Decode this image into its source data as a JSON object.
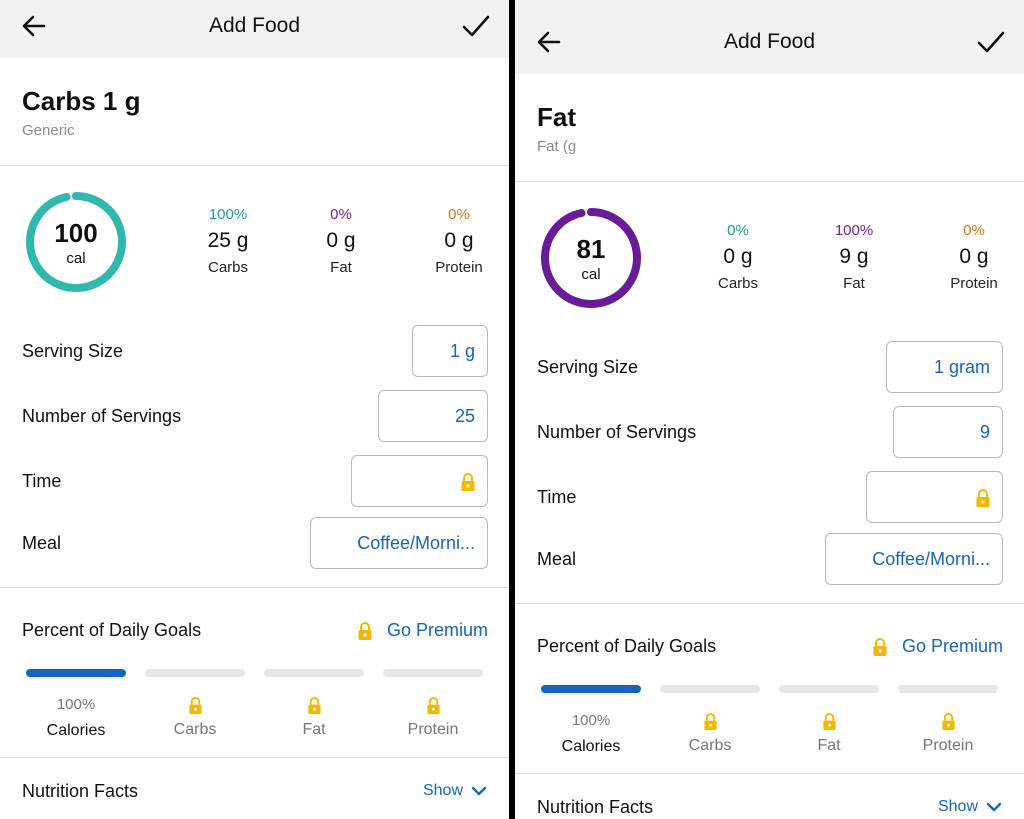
{
  "screens": [
    {
      "header": {
        "title": "Add Food"
      },
      "food": {
        "name": "Carbs 1 g",
        "brand": "Generic"
      },
      "calories": {
        "value": "100",
        "unit": "cal"
      },
      "ring_color": "#2fb8ae",
      "ring_fraction": 1.0,
      "macros": [
        {
          "percent": "100%",
          "amount": "25 g",
          "label": "Carbs"
        },
        {
          "percent": "0%",
          "amount": "0 g",
          "label": "Fat"
        },
        {
          "percent": "0%",
          "amount": "0 g",
          "label": "Protein"
        }
      ],
      "serving_size": {
        "label": "Serving Size",
        "value": "1 g"
      },
      "servings": {
        "label": "Number of Servings",
        "value": "25"
      },
      "time": {
        "label": "Time"
      },
      "meal": {
        "label": "Meal",
        "value": "Coffee/Morni..."
      },
      "goals": {
        "title": "Percent of Daily Goals",
        "premium": "Go Premium",
        "calories_percent": "100%",
        "labels": [
          "Calories",
          "Carbs",
          "Fat",
          "Protein"
        ]
      },
      "nutrition": {
        "title": "Nutrition Facts",
        "show": "Show"
      }
    },
    {
      "header": {
        "title": "Add Food"
      },
      "food": {
        "name": "Fat",
        "brand": "Fat (g"
      },
      "calories": {
        "value": "81",
        "unit": "cal"
      },
      "ring_color": "#6a1b9a",
      "ring_fraction": 1.0,
      "macros": [
        {
          "percent": "0%",
          "amount": "0 g",
          "label": "Carbs"
        },
        {
          "percent": "100%",
          "amount": "9 g",
          "label": "Fat"
        },
        {
          "percent": "0%",
          "amount": "0 g",
          "label": "Protein"
        }
      ],
      "serving_size": {
        "label": "Serving Size",
        "value": "1 gram"
      },
      "servings": {
        "label": "Number of Servings",
        "value": "9"
      },
      "time": {
        "label": "Time"
      },
      "meal": {
        "label": "Meal",
        "value": "Coffee/Morni..."
      },
      "goals": {
        "title": "Percent of Daily Goals",
        "premium": "Go Premium",
        "calories_percent": "100%",
        "labels": [
          "Calories",
          "Carbs",
          "Fat",
          "Protein"
        ]
      },
      "nutrition": {
        "title": "Nutrition Facts",
        "show": "Show"
      }
    }
  ],
  "colors": {
    "accent": "#1565c0",
    "lock": "#f5b800",
    "carbs": "#1f9e96",
    "fat": "#7b1fa2",
    "protein": "#d1780a"
  }
}
